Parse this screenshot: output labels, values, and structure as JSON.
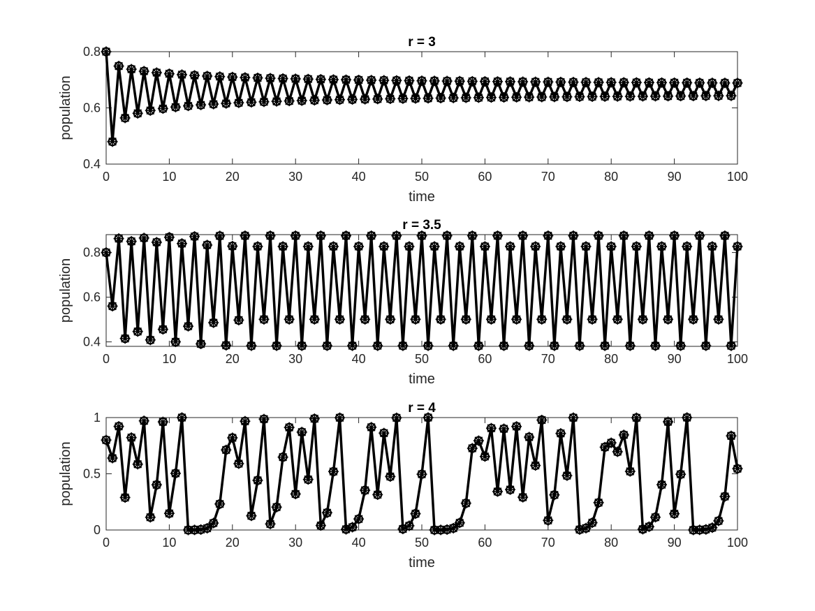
{
  "figure": {
    "background": "#ffffff",
    "line_color": "#000000",
    "axis_color": "#262626"
  },
  "chart_data": [
    {
      "type": "line",
      "title": "r = 3",
      "xlabel": "time",
      "ylabel": "population",
      "xlim": [
        0,
        100
      ],
      "ylim": [
        0.4,
        0.8
      ],
      "xticks": [
        0,
        10,
        20,
        30,
        40,
        50,
        60,
        70,
        80,
        90,
        100
      ],
      "yticks": [
        0.4,
        0.6,
        0.8
      ],
      "ytick_labels": [
        "0.4",
        "0.6",
        "0.8"
      ],
      "grid": false,
      "marker": "asterisk-circle",
      "series": [
        {
          "generator": "logistic map x(n+1) = r*x(n)*(1-x(n))",
          "r": 3,
          "x0": 0.8,
          "n_points": 101
        }
      ]
    },
    {
      "type": "line",
      "title": "r = 3.5",
      "xlabel": "time",
      "ylabel": "population",
      "xlim": [
        0,
        100
      ],
      "ylim": [
        0.38,
        0.88
      ],
      "xticks": [
        0,
        10,
        20,
        30,
        40,
        50,
        60,
        70,
        80,
        90,
        100
      ],
      "yticks": [
        0.4,
        0.6,
        0.8
      ],
      "ytick_labels": [
        "0.4",
        "0.6",
        "0.8"
      ],
      "grid": false,
      "marker": "asterisk-circle",
      "series": [
        {
          "generator": "logistic map x(n+1) = r*x(n)*(1-x(n))",
          "r": 3.5,
          "x0": 0.8,
          "n_points": 101
        }
      ]
    },
    {
      "type": "line",
      "title": "r = 4",
      "xlabel": "time",
      "ylabel": "population",
      "xlim": [
        0,
        100
      ],
      "ylim": [
        0,
        1
      ],
      "xticks": [
        0,
        10,
        20,
        30,
        40,
        50,
        60,
        70,
        80,
        90,
        100
      ],
      "yticks": [
        0,
        0.5,
        1
      ],
      "ytick_labels": [
        "0",
        "0.5",
        "1"
      ],
      "grid": false,
      "marker": "asterisk-circle",
      "series": [
        {
          "generator": "logistic map x(n+1) = r*x(n)*(1-x(n))",
          "r": 4,
          "x0": 0.8,
          "n_points": 101
        }
      ]
    }
  ]
}
